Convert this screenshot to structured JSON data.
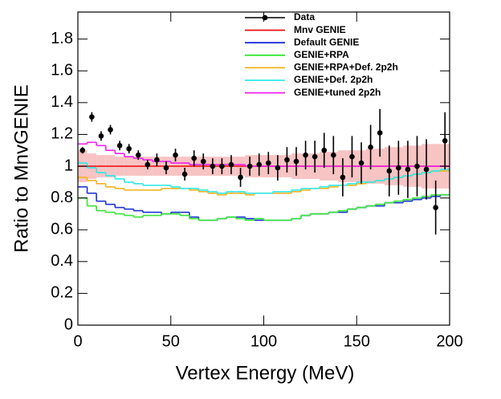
{
  "chart_data": {
    "type": "histogram",
    "xlabel": "Vertex Energy (MeV)",
    "ylabel": "Ratio to MnvGENIE",
    "xlim": [
      0,
      200
    ],
    "ylim": [
      0,
      1.97
    ],
    "xticks": [
      0,
      50,
      100,
      150,
      200
    ],
    "yticks": [
      0,
      0.2,
      0.4,
      0.6,
      0.8,
      1,
      1.2,
      1.4,
      1.6,
      1.8
    ],
    "legend": "upper right",
    "bins": [
      0,
      5,
      10,
      15,
      20,
      25,
      30,
      35,
      40,
      45,
      50,
      55,
      60,
      65,
      70,
      75,
      80,
      85,
      90,
      95,
      100,
      105,
      110,
      115,
      120,
      125,
      130,
      135,
      140,
      145,
      150,
      155,
      160,
      165,
      170,
      175,
      180,
      185,
      190,
      195,
      200
    ],
    "error_band": {
      "color": "#f7c3c3",
      "lower": [
        0.9,
        0.92,
        0.93,
        0.93,
        0.94,
        0.94,
        0.94,
        0.94,
        0.94,
        0.94,
        0.94,
        0.94,
        0.94,
        0.94,
        0.94,
        0.94,
        0.94,
        0.94,
        0.93,
        0.93,
        0.93,
        0.93,
        0.93,
        0.92,
        0.92,
        0.92,
        0.91,
        0.91,
        0.9,
        0.9,
        0.9,
        0.89,
        0.89,
        0.88,
        0.88,
        0.87,
        0.87,
        0.86,
        0.86,
        0.86
      ],
      "upper": [
        1.1,
        1.08,
        1.07,
        1.07,
        1.06,
        1.06,
        1.06,
        1.06,
        1.06,
        1.06,
        1.06,
        1.06,
        1.06,
        1.06,
        1.06,
        1.06,
        1.06,
        1.06,
        1.07,
        1.07,
        1.07,
        1.07,
        1.07,
        1.08,
        1.08,
        1.08,
        1.09,
        1.09,
        1.1,
        1.1,
        1.1,
        1.11,
        1.11,
        1.12,
        1.12,
        1.13,
        1.13,
        1.14,
        1.14,
        1.14
      ]
    },
    "data": {
      "name": "Data",
      "color": "#000000",
      "values": [
        1.1,
        1.31,
        1.19,
        1.23,
        1.13,
        1.11,
        1.07,
        1.01,
        1.04,
        0.99,
        1.07,
        0.95,
        1.05,
        1.03,
        1.0,
        1.0,
        1.01,
        0.93,
        1.0,
        1.01,
        1.02,
        0.99,
        1.04,
        1.03,
        1.07,
        1.06,
        1.1,
        1.07,
        0.93,
        1.06,
        1.02,
        1.12,
        1.21,
        0.97,
        0.99,
        0.98,
        1.0,
        0.98,
        0.74,
        1.16
      ],
      "errors": [
        0.02,
        0.03,
        0.03,
        0.03,
        0.03,
        0.03,
        0.03,
        0.03,
        0.04,
        0.04,
        0.04,
        0.04,
        0.05,
        0.05,
        0.05,
        0.05,
        0.06,
        0.06,
        0.06,
        0.07,
        0.07,
        0.08,
        0.08,
        0.09,
        0.09,
        0.1,
        0.11,
        0.12,
        0.12,
        0.13,
        0.13,
        0.14,
        0.15,
        0.16,
        0.17,
        0.18,
        0.19,
        0.19,
        0.17,
        0.18
      ]
    },
    "series": [
      {
        "name": "Mnv GENIE",
        "color": "#ee1111",
        "values": [
          1,
          1,
          1,
          1,
          1,
          1,
          1,
          1,
          1,
          1,
          1,
          1,
          1,
          1,
          1,
          1,
          1,
          1,
          1,
          1,
          1,
          1,
          1,
          1,
          1,
          1,
          1,
          1,
          1,
          1,
          1,
          1,
          1,
          1,
          1,
          1,
          1,
          1,
          1,
          1
        ]
      },
      {
        "name": "Default GENIE",
        "color": "#1a2fd6",
        "values": [
          0.87,
          0.83,
          0.78,
          0.76,
          0.74,
          0.73,
          0.72,
          0.71,
          0.71,
          0.7,
          0.71,
          0.71,
          0.68,
          0.66,
          0.66,
          0.67,
          0.68,
          0.68,
          0.67,
          0.66,
          0.66,
          0.66,
          0.66,
          0.67,
          0.69,
          0.7,
          0.7,
          0.71,
          0.71,
          0.73,
          0.74,
          0.75,
          0.75,
          0.77,
          0.77,
          0.78,
          0.79,
          0.8,
          0.81,
          0.82
        ]
      },
      {
        "name": "GENIE+RPA",
        "color": "#33e633",
        "values": [
          0.8,
          0.75,
          0.72,
          0.71,
          0.7,
          0.69,
          0.68,
          0.69,
          0.69,
          0.7,
          0.7,
          0.69,
          0.67,
          0.66,
          0.66,
          0.67,
          0.68,
          0.67,
          0.66,
          0.67,
          0.66,
          0.66,
          0.66,
          0.67,
          0.69,
          0.7,
          0.7,
          0.71,
          0.72,
          0.73,
          0.74,
          0.75,
          0.76,
          0.77,
          0.78,
          0.79,
          0.8,
          0.81,
          0.82,
          0.82
        ]
      },
      {
        "name": "GENIE+RPA+Def. 2p2h",
        "color": "#f2b21c",
        "values": [
          0.93,
          0.91,
          0.89,
          0.87,
          0.86,
          0.85,
          0.85,
          0.85,
          0.85,
          0.86,
          0.86,
          0.86,
          0.85,
          0.84,
          0.83,
          0.82,
          0.83,
          0.83,
          0.82,
          0.83,
          0.83,
          0.83,
          0.83,
          0.84,
          0.85,
          0.86,
          0.86,
          0.87,
          0.88,
          0.88,
          0.89,
          0.9,
          0.91,
          0.92,
          0.93,
          0.94,
          0.95,
          0.96,
          0.97,
          0.97
        ]
      },
      {
        "name": "GENIE+Def. 2p2h",
        "color": "#2ee8e8",
        "values": [
          1.02,
          0.99,
          0.96,
          0.94,
          0.92,
          0.9,
          0.89,
          0.88,
          0.88,
          0.88,
          0.87,
          0.86,
          0.86,
          0.85,
          0.84,
          0.83,
          0.84,
          0.84,
          0.83,
          0.83,
          0.83,
          0.84,
          0.84,
          0.85,
          0.86,
          0.86,
          0.87,
          0.88,
          0.88,
          0.89,
          0.9,
          0.9,
          0.91,
          0.92,
          0.93,
          0.94,
          0.95,
          0.96,
          0.97,
          0.98
        ]
      },
      {
        "name": "GENIE+tuned 2p2h",
        "color": "#ee22ee",
        "values": [
          1.14,
          1.15,
          1.13,
          1.1,
          1.08,
          1.06,
          1.05,
          1.04,
          1.03,
          1.03,
          1.02,
          1.02,
          1.01,
          1.01,
          1.01,
          1.01,
          1.01,
          1.01,
          1,
          1,
          1,
          1,
          1,
          1,
          1,
          1,
          1,
          1,
          1,
          1,
          1,
          1,
          1,
          1,
          1,
          1,
          1,
          1,
          1,
          1
        ]
      }
    ]
  }
}
